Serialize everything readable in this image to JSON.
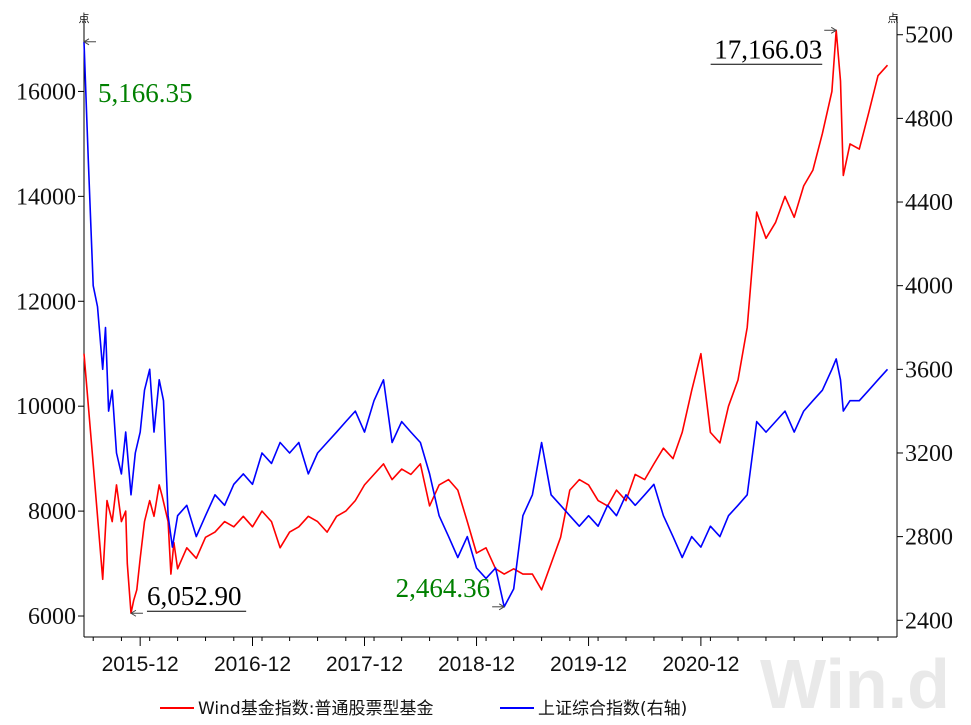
{
  "chart_data": {
    "type": "line",
    "x_tick_labels": [
      "2015-12",
      "2016-12",
      "2017-12",
      "2018-12",
      "2019-12",
      "2020-12"
    ],
    "y_left": {
      "unit": "点",
      "ticks": [
        6000,
        8000,
        10000,
        12000,
        14000,
        16000
      ],
      "lim": [
        5600,
        17400
      ]
    },
    "y_right": {
      "unit": "点",
      "ticks": [
        2400,
        2800,
        3200,
        3600,
        4000,
        4400,
        4800,
        5200
      ],
      "lim": [
        2320,
        5280
      ]
    },
    "series": [
      {
        "name": "Wind基金指数:普通股票型基金",
        "color": "#ff0000",
        "axis": "left",
        "points": [
          [
            "2015-06",
            11000
          ],
          [
            "2015-07",
            8900
          ],
          [
            "2015-08",
            6700
          ],
          [
            "2015-08-15",
            8200
          ],
          [
            "2015-09",
            7800
          ],
          [
            "2015-09-15",
            8500
          ],
          [
            "2015-10",
            7800
          ],
          [
            "2015-10-15",
            8000
          ],
          [
            "2015-10-20",
            7000
          ],
          [
            "2015-11",
            6052.9
          ],
          [
            "2015-11-10",
            6300
          ],
          [
            "2015-11-20",
            6500
          ],
          [
            "2015-12",
            7100
          ],
          [
            "2015-12-15",
            7800
          ],
          [
            "2016-01",
            8200
          ],
          [
            "2016-01-15",
            7900
          ],
          [
            "2016-02",
            8500
          ],
          [
            "2016-02-10",
            8300
          ],
          [
            "2016-03",
            7800
          ],
          [
            "2016-03-10",
            6800
          ],
          [
            "2016-03-20",
            7400
          ],
          [
            "2016-04",
            6900
          ],
          [
            "2016-05",
            7300
          ],
          [
            "2016-06",
            7100
          ],
          [
            "2016-07",
            7500
          ],
          [
            "2016-08",
            7600
          ],
          [
            "2016-09",
            7800
          ],
          [
            "2016-10",
            7700
          ],
          [
            "2016-11",
            7900
          ],
          [
            "2016-12",
            7700
          ],
          [
            "2017-01",
            8000
          ],
          [
            "2017-02",
            7800
          ],
          [
            "2017-03",
            7300
          ],
          [
            "2017-04",
            7600
          ],
          [
            "2017-05",
            7700
          ],
          [
            "2017-06",
            7900
          ],
          [
            "2017-07",
            7800
          ],
          [
            "2017-08",
            7600
          ],
          [
            "2017-09",
            7900
          ],
          [
            "2017-10",
            8000
          ],
          [
            "2017-11",
            8200
          ],
          [
            "2017-12",
            8500
          ],
          [
            "2018-01",
            8700
          ],
          [
            "2018-02",
            8900
          ],
          [
            "2018-03",
            8600
          ],
          [
            "2018-04",
            8800
          ],
          [
            "2018-05",
            8700
          ],
          [
            "2018-06",
            8900
          ],
          [
            "2018-07",
            8100
          ],
          [
            "2018-08",
            8500
          ],
          [
            "2018-09",
            8600
          ],
          [
            "2018-10",
            8400
          ],
          [
            "2018-11",
            7800
          ],
          [
            "2018-12",
            7200
          ],
          [
            "2019-01",
            7300
          ],
          [
            "2019-02",
            6900
          ],
          [
            "2019-03",
            6800
          ],
          [
            "2019-04",
            6900
          ],
          [
            "2019-05",
            6800
          ],
          [
            "2019-06",
            6800
          ],
          [
            "2019-07",
            6500
          ],
          [
            "2019-08",
            7000
          ],
          [
            "2019-09",
            7500
          ],
          [
            "2019-10",
            8400
          ],
          [
            "2019-11",
            8600
          ],
          [
            "2019-12",
            8500
          ],
          [
            "2020-01",
            8200
          ],
          [
            "2020-02",
            8100
          ],
          [
            "2020-03",
            8400
          ],
          [
            "2020-04",
            8200
          ],
          [
            "2020-05",
            8700
          ],
          [
            "2020-06",
            8600
          ],
          [
            "2020-07",
            8900
          ],
          [
            "2020-08",
            9200
          ],
          [
            "2020-09",
            9000
          ],
          [
            "2020-10",
            9500
          ],
          [
            "2020-11",
            10300
          ],
          [
            "2020-12",
            11000
          ],
          [
            "2021-01",
            9500
          ],
          [
            "2021-02",
            9300
          ],
          [
            "2021-03",
            10000
          ],
          [
            "2021-04",
            10500
          ],
          [
            "2021-05",
            11500
          ],
          [
            "2021-06",
            13700
          ],
          [
            "2021-07",
            13200
          ],
          [
            "2021-08",
            13500
          ],
          [
            "2021-09",
            14000
          ],
          [
            "2021-10",
            13600
          ],
          [
            "2021-11",
            14200
          ],
          [
            "2021-12",
            14500
          ],
          [
            "2022-01",
            15200
          ],
          [
            "2022-02",
            16000
          ],
          [
            "2022-02-15",
            17166.03
          ],
          [
            "2022-03",
            16200
          ],
          [
            "2022-03-10",
            14400
          ],
          [
            "2022-04",
            15000
          ],
          [
            "2022-05",
            14900
          ],
          [
            "2022-06",
            15600
          ],
          [
            "2022-07",
            16300
          ],
          [
            "2022-08",
            16500
          ]
        ]
      },
      {
        "name": "上证综合指数(右轴)",
        "color": "#0000ff",
        "axis": "right",
        "points": [
          [
            "2015-06",
            5166.35
          ],
          [
            "2015-06-15",
            4600
          ],
          [
            "2015-07",
            4000
          ],
          [
            "2015-07-15",
            3900
          ],
          [
            "2015-08",
            3600
          ],
          [
            "2015-08-10",
            3800
          ],
          [
            "2015-08-20",
            3400
          ],
          [
            "2015-09",
            3500
          ],
          [
            "2015-09-15",
            3200
          ],
          [
            "2015-10",
            3100
          ],
          [
            "2015-10-15",
            3300
          ],
          [
            "2015-11",
            3000
          ],
          [
            "2015-11-15",
            3200
          ],
          [
            "2015-12",
            3300
          ],
          [
            "2015-12-15",
            3500
          ],
          [
            "2016-01",
            3600
          ],
          [
            "2016-01-15",
            3300
          ],
          [
            "2016-02",
            3550
          ],
          [
            "2016-02-15",
            3450
          ],
          [
            "2016-03",
            2900
          ],
          [
            "2016-03-15",
            2750
          ],
          [
            "2016-04",
            2900
          ],
          [
            "2016-05",
            2950
          ],
          [
            "2016-06",
            2800
          ],
          [
            "2016-07",
            2900
          ],
          [
            "2016-08",
            3000
          ],
          [
            "2016-09",
            2950
          ],
          [
            "2016-10",
            3050
          ],
          [
            "2016-11",
            3100
          ],
          [
            "2016-12",
            3050
          ],
          [
            "2017-01",
            3200
          ],
          [
            "2017-02",
            3150
          ],
          [
            "2017-03",
            3250
          ],
          [
            "2017-04",
            3200
          ],
          [
            "2017-05",
            3250
          ],
          [
            "2017-06",
            3100
          ],
          [
            "2017-07",
            3200
          ],
          [
            "2017-08",
            3250
          ],
          [
            "2017-09",
            3300
          ],
          [
            "2017-10",
            3350
          ],
          [
            "2017-11",
            3400
          ],
          [
            "2017-12",
            3300
          ],
          [
            "2018-01",
            3450
          ],
          [
            "2018-02",
            3550
          ],
          [
            "2018-03",
            3250
          ],
          [
            "2018-04",
            3350
          ],
          [
            "2018-05",
            3300
          ],
          [
            "2018-06",
            3250
          ],
          [
            "2018-07",
            3100
          ],
          [
            "2018-08",
            2900
          ],
          [
            "2018-09",
            2800
          ],
          [
            "2018-10",
            2700
          ],
          [
            "2018-11",
            2800
          ],
          [
            "2018-12",
            2650
          ],
          [
            "2019-01",
            2600
          ],
          [
            "2019-02",
            2650
          ],
          [
            "2019-03",
            2464.36
          ],
          [
            "2019-04",
            2550
          ],
          [
            "2019-05",
            2900
          ],
          [
            "2019-06",
            3000
          ],
          [
            "2019-07",
            3250
          ],
          [
            "2019-08",
            3000
          ],
          [
            "2019-09",
            2950
          ],
          [
            "2019-10",
            2900
          ],
          [
            "2019-11",
            2850
          ],
          [
            "2019-12",
            2900
          ],
          [
            "2020-01",
            2850
          ],
          [
            "2020-02",
            2950
          ],
          [
            "2020-03",
            2900
          ],
          [
            "2020-04",
            3000
          ],
          [
            "2020-05",
            2950
          ],
          [
            "2020-06",
            3000
          ],
          [
            "2020-07",
            3050
          ],
          [
            "2020-08",
            2900
          ],
          [
            "2020-09",
            2800
          ],
          [
            "2020-10",
            2700
          ],
          [
            "2020-11",
            2800
          ],
          [
            "2020-12",
            2750
          ],
          [
            "2021-01",
            2850
          ],
          [
            "2021-02",
            2800
          ],
          [
            "2021-03",
            2900
          ],
          [
            "2021-04",
            2950
          ],
          [
            "2021-05",
            3000
          ],
          [
            "2021-06",
            3350
          ],
          [
            "2021-07",
            3300
          ],
          [
            "2021-08",
            3350
          ],
          [
            "2021-09",
            3400
          ],
          [
            "2021-10",
            3300
          ],
          [
            "2021-11",
            3400
          ],
          [
            "2021-12",
            3450
          ],
          [
            "2022-01",
            3500
          ],
          [
            "2022-02",
            3600
          ],
          [
            "2022-02-15",
            3650
          ],
          [
            "2022-03",
            3550
          ],
          [
            "2022-03-10",
            3400
          ],
          [
            "2022-04",
            3450
          ],
          [
            "2022-05",
            3450
          ],
          [
            "2022-06",
            3500
          ],
          [
            "2022-07",
            3550
          ],
          [
            "2022-08",
            3600
          ]
        ]
      }
    ],
    "annotations": [
      {
        "id": "sse-high",
        "text": "5,166.35",
        "color": "#008000",
        "series": 1,
        "date": "2015-06"
      },
      {
        "id": "fund-low",
        "text": "6,052.90",
        "color": "#000000",
        "series": 0,
        "date": "2015-11"
      },
      {
        "id": "sse-low",
        "text": "2,464.36",
        "color": "#008000",
        "series": 1,
        "date": "2019-03"
      },
      {
        "id": "fund-high",
        "text": "17,166.03",
        "color": "#000000",
        "series": 0,
        "date": "2022-02-15"
      }
    ],
    "legend": {
      "position": "bottom"
    },
    "watermark": "Win.d"
  }
}
